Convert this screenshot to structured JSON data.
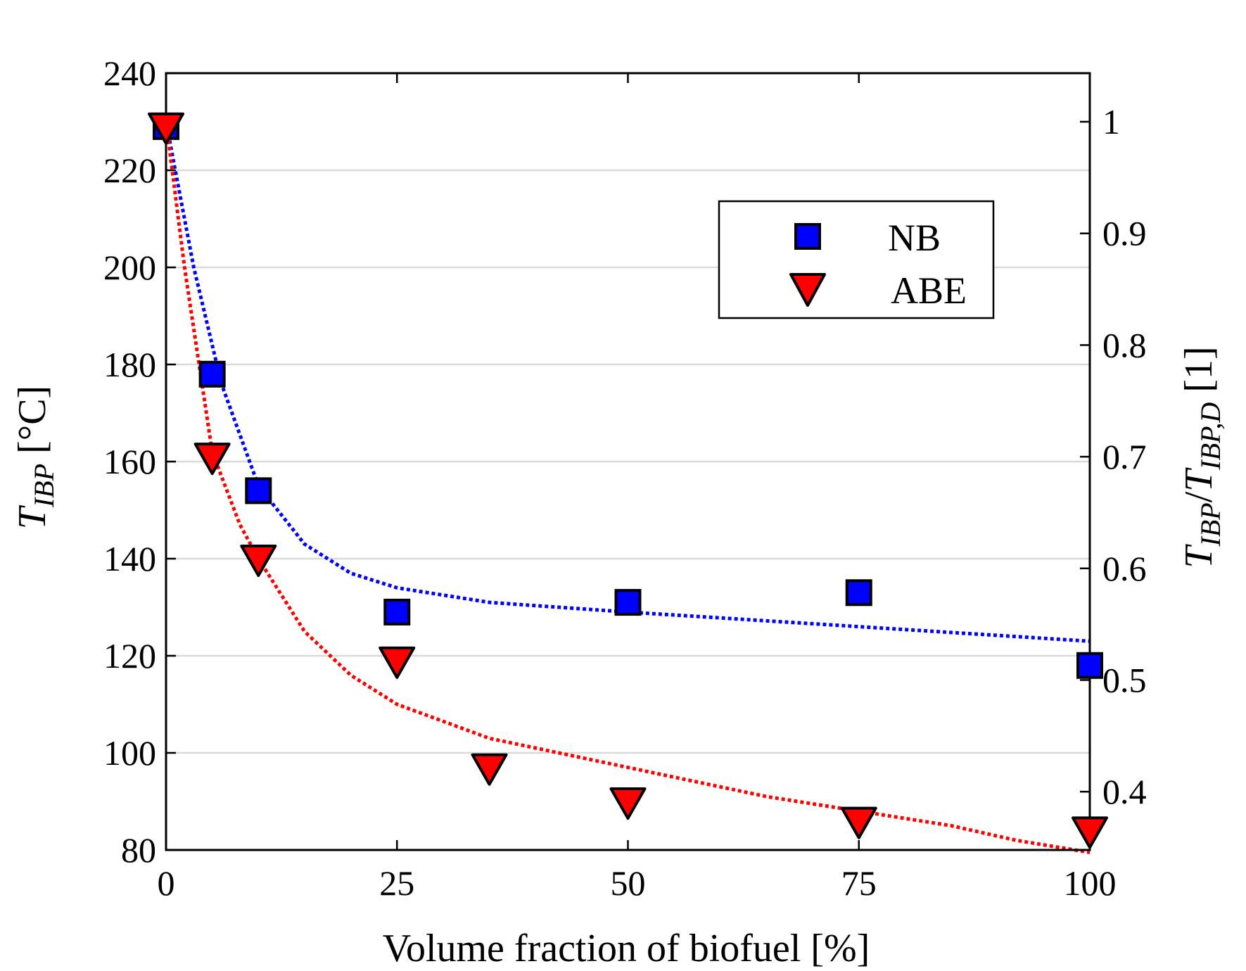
{
  "chart_data": {
    "type": "scatter",
    "x": [
      0,
      5,
      10,
      25,
      35,
      50,
      75,
      100
    ],
    "xlabel": "Volume fraction of biofuel [%]",
    "xlim": [
      0,
      100
    ],
    "xticks": [
      "0",
      "25",
      "50",
      "75",
      "100"
    ],
    "ylabel": {
      "main": "T",
      "sub": "IBP",
      "unit": " [°C]"
    },
    "ylim": [
      80,
      240
    ],
    "yticks": [
      "80",
      "100",
      "120",
      "140",
      "160",
      "180",
      "200",
      "220",
      "240"
    ],
    "y2label": {
      "main1": "T",
      "sub1": "IBP",
      "slash": "/",
      "main2": "T",
      "sub2": "IBP,D",
      "unit": " [1]"
    },
    "y2lim": [
      0.3478,
      1.0435
    ],
    "y2ticks": [
      "0.4",
      "0.5",
      "0.6",
      "0.7",
      "0.8",
      "0.9",
      "1"
    ],
    "grid": "horizontal",
    "legend_position": "top-right",
    "series": [
      {
        "name": "NB",
        "marker": "square",
        "color": "#0000ff",
        "points": [
          [
            0,
            229
          ],
          [
            5,
            178
          ],
          [
            10,
            154
          ],
          [
            25,
            129
          ],
          [
            50,
            131
          ],
          [
            75,
            133
          ],
          [
            100,
            118
          ]
        ],
        "trend": [
          [
            0,
            230
          ],
          [
            3,
            200
          ],
          [
            6,
            176
          ],
          [
            10,
            155
          ],
          [
            15,
            143
          ],
          [
            20,
            137
          ],
          [
            25,
            134
          ],
          [
            35,
            131
          ],
          [
            50,
            129
          ],
          [
            75,
            126
          ],
          [
            100,
            123
          ]
        ]
      },
      {
        "name": "ABE",
        "marker": "triangle-down",
        "color": "#ff0000",
        "points": [
          [
            0,
            229
          ],
          [
            5,
            161
          ],
          [
            10,
            140
          ],
          [
            25,
            119
          ],
          [
            35,
            97
          ],
          [
            50,
            90
          ],
          [
            75,
            86
          ],
          [
            100,
            84
          ]
        ],
        "trend": [
          [
            0,
            230
          ],
          [
            2,
            200
          ],
          [
            5,
            162
          ],
          [
            8,
            147
          ],
          [
            10,
            140
          ],
          [
            15,
            125
          ],
          [
            20,
            116
          ],
          [
            25,
            110
          ],
          [
            35,
            103
          ],
          [
            50,
            97
          ],
          [
            65,
            91
          ],
          [
            75,
            88
          ],
          [
            85,
            85
          ],
          [
            92,
            82
          ],
          [
            100,
            79.5
          ]
        ]
      }
    ]
  }
}
